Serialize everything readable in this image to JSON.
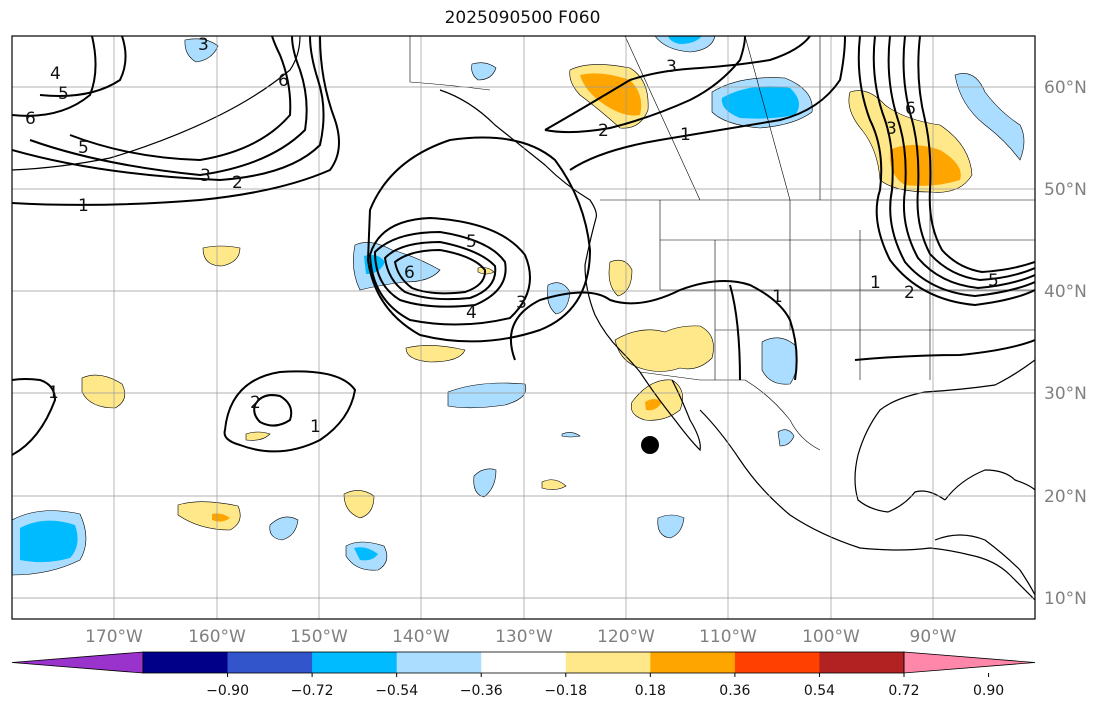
{
  "title": "2025090500 F060",
  "lat_labels": [
    "60°N",
    "50°N",
    "40°N",
    "30°N",
    "20°N",
    "10°N"
  ],
  "lon_labels": [
    "170°W",
    "160°W",
    "150°W",
    "140°W",
    "130°W",
    "120°W",
    "110°W",
    "100°W",
    "90°W"
  ],
  "colorbar": {
    "colors": [
      "#9933cc",
      "#000088",
      "#3355cc",
      "#00bbff",
      "#aaddff",
      "#ffffff",
      "#ffe88a",
      "#ffa500",
      "#ff4000",
      "#b22222",
      "#ff88aa"
    ],
    "tick_labels": [
      "−0.90",
      "−0.72",
      "−0.54",
      "−0.36",
      "−0.18",
      "0.18",
      "0.36",
      "0.54",
      "0.72",
      "0.90"
    ]
  },
  "contour_labels": [
    "1",
    "2",
    "3",
    "4",
    "5",
    "6"
  ],
  "fill_colors": {
    "pos1": "#ffe88a",
    "pos2": "#ffa500",
    "neg1": "#aaddff",
    "neg2": "#00bbff"
  },
  "marker": {
    "name": "black dot",
    "color": "#000000"
  }
}
